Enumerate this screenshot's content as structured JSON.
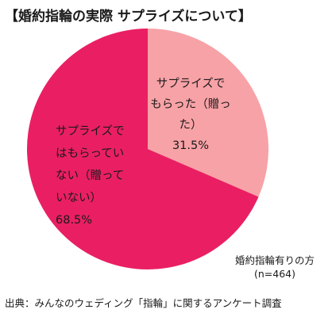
{
  "title": "【婚約指輪の実際 サプライズについて】",
  "chart_data": {
    "type": "pie",
    "slices": [
      {
        "label_lines": [
          "サプライズで",
          "もらった（贈っ",
          "た）"
        ],
        "value_text": "31.5%",
        "value": 31.5,
        "color": "#f7a2a6"
      },
      {
        "label_lines": [
          "サプライズで",
          "はもらってい",
          "ない（贈って",
          "いない）"
        ],
        "value_text": "68.5%",
        "value": 68.5,
        "color": "#ea1f63"
      }
    ]
  },
  "basis": {
    "line1": "婚約指輪有りの方",
    "line2": "(n=464)"
  },
  "source": "出典：みんなのウェディング「指輪」に関するアンケート調査"
}
